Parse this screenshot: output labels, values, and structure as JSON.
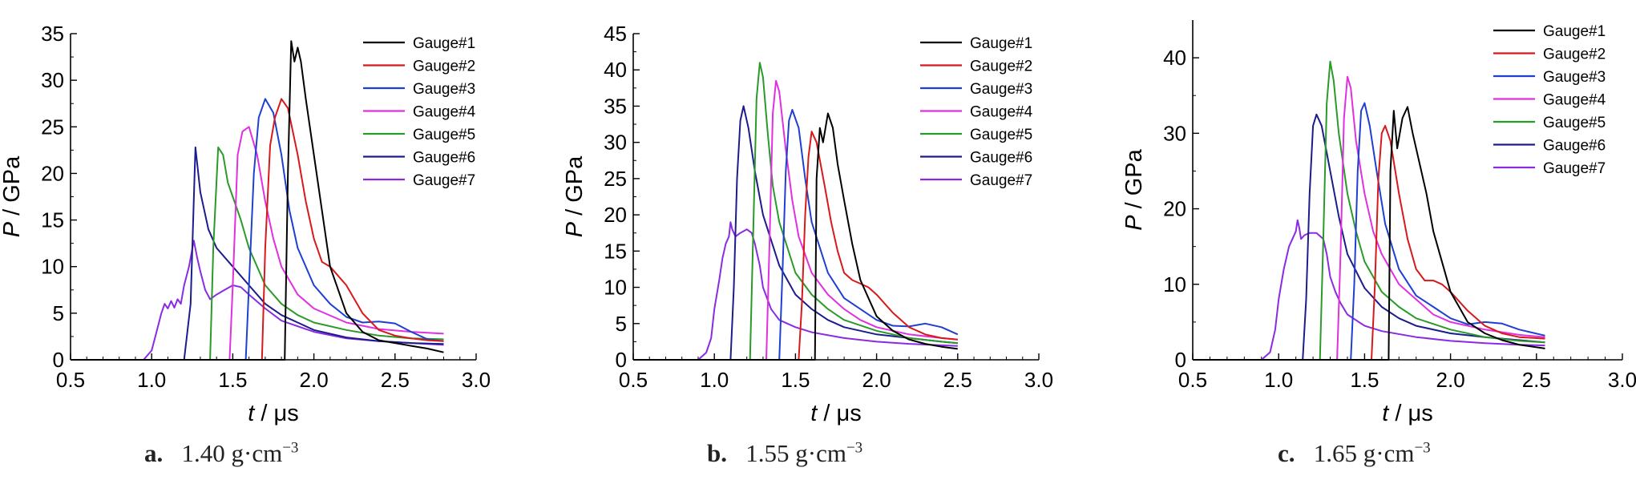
{
  "chart_data": [
    {
      "type": "line",
      "caption_letter": "a.",
      "caption_text": "1.40 g·cm",
      "caption_exp": "−3",
      "xlabel_var": "t",
      "xlabel_unit": " / μs",
      "ylabel_var": "P",
      "ylabel_unit": " / GPa",
      "xlim": [
        0.5,
        3.0
      ],
      "ylim": [
        0,
        35
      ],
      "xticks": [
        "0.5",
        "1.0",
        "1.5",
        "2.0",
        "2.5",
        "3.0"
      ],
      "yticks": [
        "0",
        "5",
        "10",
        "15",
        "20",
        "25",
        "30",
        "35"
      ],
      "legend_position": "top-right",
      "series": [
        {
          "name": "Gauge#1",
          "color": "#000000",
          "x": [
            1.82,
            1.84,
            1.86,
            1.88,
            1.9,
            1.92,
            1.95,
            2.0,
            2.05,
            2.1,
            2.2,
            2.3,
            2.4,
            2.5,
            2.6,
            2.7,
            2.8
          ],
          "y": [
            0,
            20,
            34.2,
            32,
            33.5,
            32,
            28,
            22,
            16,
            10,
            5,
            3,
            2.1,
            1.8,
            1.5,
            1.2,
            0.8
          ]
        },
        {
          "name": "Gauge#2",
          "color": "#d7191c",
          "x": [
            1.68,
            1.7,
            1.73,
            1.76,
            1.8,
            1.84,
            1.9,
            1.95,
            2.0,
            2.05,
            2.1,
            2.2,
            2.3,
            2.4,
            2.5,
            2.6,
            2.7,
            2.8
          ],
          "y": [
            0,
            12,
            23,
            26,
            28,
            27,
            22,
            17,
            13,
            10.5,
            10,
            8,
            5,
            3.2,
            2.6,
            2.3,
            2.1,
            2.0
          ]
        },
        {
          "name": "Gauge#3",
          "color": "#1f3fd0",
          "x": [
            1.58,
            1.6,
            1.63,
            1.66,
            1.7,
            1.75,
            1.8,
            1.85,
            1.9,
            2.0,
            2.1,
            2.2,
            2.3,
            2.4,
            2.5,
            2.6,
            2.7,
            2.8
          ],
          "y": [
            0,
            8,
            20,
            26,
            28,
            26.5,
            22,
            16,
            12,
            8,
            6,
            4.6,
            4,
            4.1,
            3.9,
            3,
            2.2,
            2.0
          ]
        },
        {
          "name": "Gauge#4",
          "color": "#e030e0",
          "x": [
            1.48,
            1.5,
            1.53,
            1.56,
            1.6,
            1.65,
            1.7,
            1.75,
            1.8,
            1.9,
            2.0,
            2.2,
            2.4,
            2.6,
            2.8
          ],
          "y": [
            0,
            8,
            22,
            24.5,
            25,
            22,
            17,
            13,
            10,
            7,
            5.5,
            4,
            3.3,
            3.0,
            2.8
          ]
        },
        {
          "name": "Gauge#5",
          "color": "#2a9a2a",
          "x": [
            1.36,
            1.38,
            1.41,
            1.44,
            1.47,
            1.5,
            1.55,
            1.6,
            1.7,
            1.8,
            1.9,
            2.0,
            2.2,
            2.4,
            2.6,
            2.8
          ],
          "y": [
            0,
            12,
            22.8,
            22,
            19,
            17.5,
            15,
            12,
            8,
            6,
            4.8,
            4,
            3.2,
            2.6,
            2.3,
            2.2
          ]
        },
        {
          "name": "Gauge#6",
          "color": "#1c1c8c",
          "x": [
            1.2,
            1.24,
            1.27,
            1.3,
            1.35,
            1.4,
            1.5,
            1.6,
            1.7,
            1.8,
            1.9,
            2.0,
            2.2,
            2.4,
            2.6,
            2.8
          ],
          "y": [
            0,
            6,
            22.8,
            18,
            14,
            12,
            10,
            8,
            6,
            4.8,
            4,
            3.2,
            2.4,
            2.0,
            1.8,
            1.7
          ]
        },
        {
          "name": "Gauge#7",
          "color": "#8a2be2",
          "x": [
            0.95,
            1.0,
            1.03,
            1.06,
            1.08,
            1.1,
            1.12,
            1.14,
            1.16,
            1.18,
            1.2,
            1.23,
            1.26,
            1.28,
            1.3,
            1.33,
            1.36,
            1.4,
            1.45,
            1.5,
            1.55,
            1.6,
            1.7,
            1.8,
            2.0,
            2.2,
            2.4,
            2.6,
            2.8
          ],
          "y": [
            0,
            1,
            3,
            5,
            6,
            5.5,
            6.3,
            5.6,
            6.5,
            6,
            8,
            10,
            12.8,
            11,
            9.5,
            7.5,
            6.5,
            7,
            7.5,
            8,
            7.8,
            7,
            5.5,
            4.2,
            3,
            2.3,
            2,
            1.8,
            1.6
          ]
        }
      ]
    },
    {
      "type": "line",
      "caption_letter": "b.",
      "caption_text": "1.55 g·cm",
      "caption_exp": "−3",
      "xlabel_var": "t",
      "xlabel_unit": " / μs",
      "ylabel_var": "P",
      "ylabel_unit": " / GPa",
      "xlim": [
        0.5,
        3.0
      ],
      "ylim": [
        0,
        45
      ],
      "xticks": [
        "0.5",
        "1.0",
        "1.5",
        "2.0",
        "2.5",
        "3.0"
      ],
      "yticks": [
        "0",
        "5",
        "10",
        "15",
        "20",
        "25",
        "30",
        "35",
        "40",
        "45"
      ],
      "legend_position": "top-right",
      "series": [
        {
          "name": "Gauge#1",
          "color": "#000000",
          "x": [
            1.62,
            1.63,
            1.65,
            1.67,
            1.7,
            1.73,
            1.76,
            1.8,
            1.85,
            1.9,
            2.0,
            2.1,
            2.2,
            2.3,
            2.4,
            2.5
          ],
          "y": [
            0,
            25,
            32,
            30,
            34,
            32,
            27,
            22,
            16,
            11,
            6,
            4,
            2.8,
            2.2,
            1.8,
            1.5
          ]
        },
        {
          "name": "Gauge#2",
          "color": "#d7191c",
          "x": [
            1.52,
            1.54,
            1.56,
            1.58,
            1.6,
            1.63,
            1.68,
            1.72,
            1.76,
            1.8,
            1.85,
            1.9,
            1.95,
            2.0,
            2.1,
            2.2,
            2.3,
            2.4,
            2.5
          ],
          "y": [
            0,
            8,
            20,
            28,
            31.5,
            30,
            24,
            19,
            15,
            12,
            11,
            10.5,
            10,
            9,
            6.5,
            4.5,
            3.5,
            3,
            2.8
          ]
        },
        {
          "name": "Gauge#3",
          "color": "#1f3fd0",
          "x": [
            1.4,
            1.42,
            1.44,
            1.46,
            1.48,
            1.52,
            1.56,
            1.6,
            1.7,
            1.8,
            1.9,
            2.0,
            2.1,
            2.2,
            2.3,
            2.4,
            2.5
          ],
          "y": [
            0,
            12,
            26,
            33,
            34.5,
            32,
            25,
            19,
            12,
            8.5,
            7,
            5.5,
            4.7,
            4.6,
            5,
            4.5,
            3.5
          ]
        },
        {
          "name": "Gauge#4",
          "color": "#e030e0",
          "x": [
            1.32,
            1.34,
            1.36,
            1.38,
            1.4,
            1.44,
            1.48,
            1.52,
            1.6,
            1.7,
            1.8,
            1.9,
            2.0,
            2.2,
            2.4,
            2.5
          ],
          "y": [
            0,
            16,
            34,
            38.5,
            37,
            29,
            22,
            17,
            12,
            9,
            7,
            5.5,
            4.5,
            3.5,
            3,
            2.8
          ]
        },
        {
          "name": "Gauge#5",
          "color": "#2a9a2a",
          "x": [
            1.22,
            1.24,
            1.26,
            1.28,
            1.3,
            1.33,
            1.36,
            1.4,
            1.5,
            1.6,
            1.7,
            1.8,
            2.0,
            2.2,
            2.4,
            2.5
          ],
          "y": [
            0,
            18,
            36,
            41,
            39,
            31,
            24,
            19,
            12,
            9,
            7,
            5.5,
            4,
            3,
            2.5,
            2.3
          ]
        },
        {
          "name": "Gauge#6",
          "color": "#1c1c8c",
          "x": [
            1.1,
            1.12,
            1.14,
            1.16,
            1.18,
            1.21,
            1.25,
            1.3,
            1.4,
            1.5,
            1.6,
            1.7,
            1.8,
            2.0,
            2.2,
            2.4,
            2.5
          ],
          "y": [
            0,
            10,
            25,
            33,
            35,
            32,
            26,
            20,
            13,
            9,
            7,
            5.5,
            4.5,
            3.5,
            3,
            2.5,
            2.3
          ]
        },
        {
          "name": "Gauge#7",
          "color": "#8a2be2",
          "x": [
            0.9,
            0.95,
            0.98,
            1.0,
            1.03,
            1.05,
            1.07,
            1.09,
            1.1,
            1.11,
            1.13,
            1.16,
            1.2,
            1.23,
            1.25,
            1.28,
            1.3,
            1.35,
            1.4,
            1.5,
            1.6,
            1.8,
            2.0,
            2.2,
            2.4,
            2.5
          ],
          "y": [
            0,
            1,
            3,
            7,
            11,
            14,
            16,
            17,
            19,
            18,
            17,
            17.5,
            18,
            17.5,
            16,
            13,
            10,
            7,
            5.5,
            4.5,
            3.8,
            3,
            2.5,
            2.2,
            2,
            1.9
          ]
        }
      ]
    },
    {
      "type": "line",
      "caption_letter": "c.",
      "caption_text": "1.65 g·cm",
      "caption_exp": "−3",
      "xlabel_var": "t",
      "xlabel_unit": " / μs",
      "ylabel_var": "P",
      "ylabel_unit": " / GPa",
      "xlim": [
        0.5,
        3.0
      ],
      "ylim": [
        0,
        45
      ],
      "xticks": [
        "0.5",
        "1.0",
        "1.5",
        "2.0",
        "2.5",
        "3.0"
      ],
      "yticks": [
        "0",
        "10",
        "20",
        "30",
        "40"
      ],
      "legend_position": "top-right",
      "series": [
        {
          "name": "Gauge#1",
          "color": "#000000",
          "x": [
            1.64,
            1.65,
            1.67,
            1.69,
            1.72,
            1.75,
            1.78,
            1.82,
            1.86,
            1.9,
            2.0,
            2.1,
            2.2,
            2.3,
            2.4,
            2.55
          ],
          "y": [
            0,
            25,
            33,
            28,
            32,
            33.5,
            30,
            26,
            22,
            17,
            9,
            5,
            3.5,
            2.6,
            2,
            1.5
          ]
        },
        {
          "name": "Gauge#2",
          "color": "#d7191c",
          "x": [
            1.54,
            1.56,
            1.58,
            1.6,
            1.62,
            1.65,
            1.7,
            1.75,
            1.8,
            1.85,
            1.9,
            1.95,
            2.0,
            2.1,
            2.2,
            2.3,
            2.4,
            2.55
          ],
          "y": [
            0,
            10,
            24,
            30,
            31,
            29,
            22,
            16,
            12,
            10.5,
            10.5,
            10,
            9,
            6.5,
            4.5,
            3.5,
            3,
            2.8
          ]
        },
        {
          "name": "Gauge#3",
          "color": "#1f3fd0",
          "x": [
            1.42,
            1.44,
            1.46,
            1.48,
            1.5,
            1.53,
            1.57,
            1.62,
            1.7,
            1.8,
            1.9,
            2.0,
            2.1,
            2.2,
            2.3,
            2.4,
            2.55
          ],
          "y": [
            0,
            10,
            25,
            33,
            34,
            31,
            25,
            18,
            12,
            8.5,
            7,
            5.5,
            4.7,
            5,
            4.8,
            4,
            3.2
          ]
        },
        {
          "name": "Gauge#4",
          "color": "#e030e0",
          "x": [
            1.34,
            1.36,
            1.38,
            1.4,
            1.42,
            1.45,
            1.5,
            1.55,
            1.6,
            1.7,
            1.8,
            1.9,
            2.0,
            2.2,
            2.4,
            2.55
          ],
          "y": [
            0,
            14,
            32,
            37.5,
            36,
            29,
            22,
            17,
            14,
            10,
            8,
            6,
            5,
            4,
            3.3,
            3
          ]
        },
        {
          "name": "Gauge#5",
          "color": "#2a9a2a",
          "x": [
            1.24,
            1.26,
            1.28,
            1.3,
            1.32,
            1.35,
            1.4,
            1.45,
            1.5,
            1.6,
            1.7,
            1.8,
            2.0,
            2.2,
            2.4,
            2.55
          ],
          "y": [
            0,
            16,
            34,
            39.5,
            37,
            30,
            22,
            17,
            13,
            9,
            7,
            5.5,
            4,
            3,
            2.5,
            2.3
          ]
        },
        {
          "name": "Gauge#6",
          "color": "#1c1c8c",
          "x": [
            1.14,
            1.16,
            1.18,
            1.2,
            1.22,
            1.25,
            1.3,
            1.35,
            1.4,
            1.5,
            1.6,
            1.7,
            1.8,
            2.0,
            2.2,
            2.4,
            2.55
          ],
          "y": [
            0,
            8,
            22,
            31,
            32.5,
            31,
            25,
            19,
            14,
            9.5,
            7,
            5.5,
            4.5,
            3.5,
            3,
            2.6,
            2.3
          ]
        },
        {
          "name": "Gauge#7",
          "color": "#8a2be2",
          "x": [
            0.9,
            0.95,
            0.98,
            1.0,
            1.03,
            1.06,
            1.08,
            1.1,
            1.11,
            1.12,
            1.13,
            1.15,
            1.18,
            1.22,
            1.26,
            1.28,
            1.3,
            1.33,
            1.36,
            1.4,
            1.5,
            1.6,
            1.8,
            2.0,
            2.2,
            2.4,
            2.55
          ],
          "y": [
            0,
            1,
            4,
            8,
            12,
            15,
            16,
            17,
            18.5,
            17.5,
            16,
            16.5,
            16.8,
            16.8,
            16,
            14,
            11,
            9,
            7.5,
            6,
            4.5,
            3.8,
            3,
            2.5,
            2.2,
            2,
            1.9
          ]
        }
      ]
    }
  ]
}
